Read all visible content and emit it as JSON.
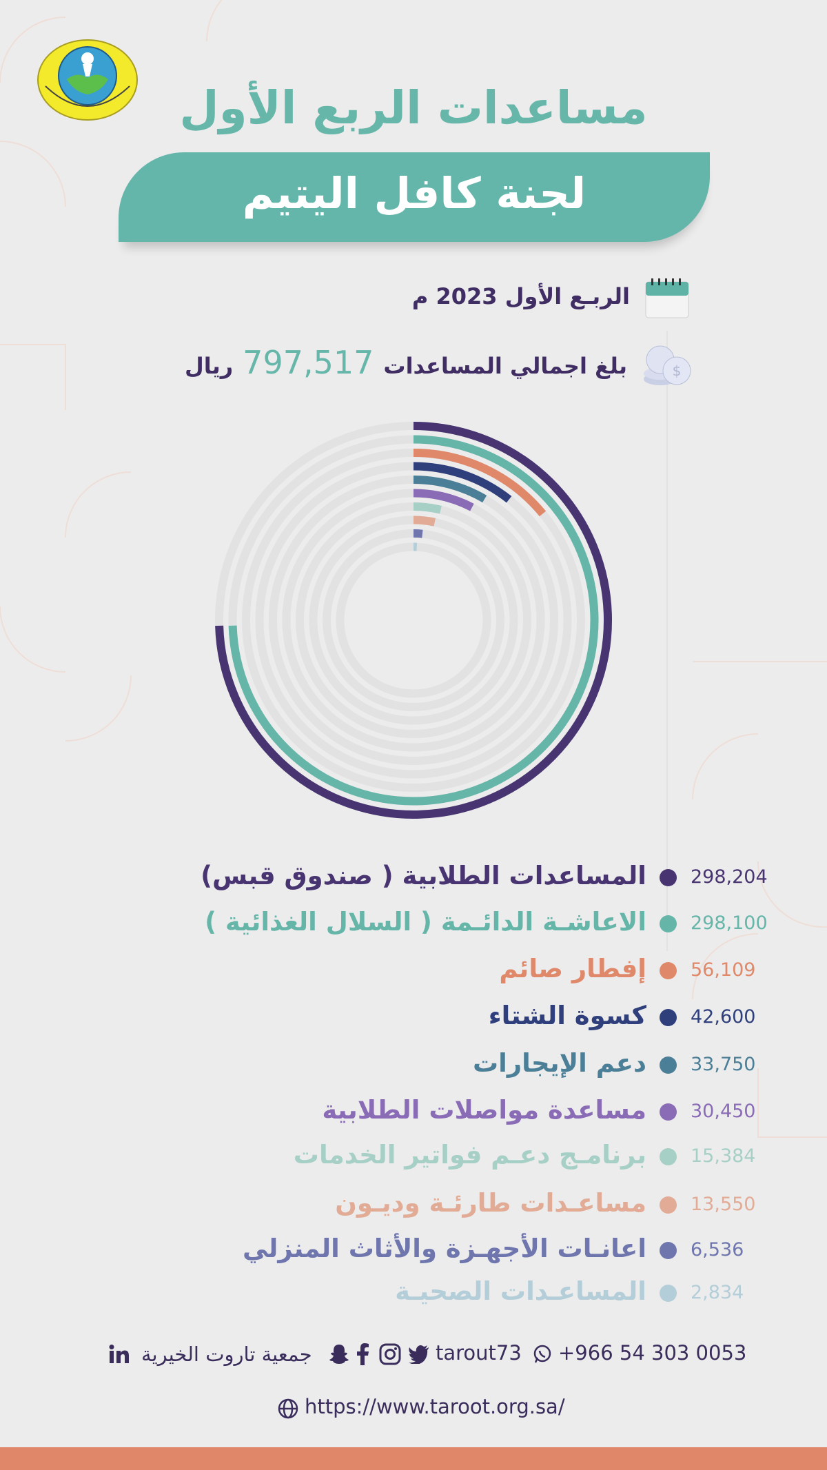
{
  "header": {
    "title": "مساعدات الربع الأول",
    "subtitle": "لجنة كافل اليتيم"
  },
  "info": {
    "period": "الربـع الأول  2023 م",
    "total_label": "بلغ اجمالي المساعدات",
    "total_amount": "797,517",
    "currency": "ريال"
  },
  "icons": {
    "calendar": "calendar-icon",
    "coins": "coins-icon",
    "whatsapp": "whatsapp-icon",
    "twitter": "twitter-icon",
    "instagram": "instagram-icon",
    "facebook": "facebook-icon",
    "snapchat": "snapchat-icon",
    "linkedin": "linkedin-icon",
    "globe": "globe-icon"
  },
  "colors": {
    "teal": "#66b6aa",
    "purple": "#473470",
    "accent_bar": "#e0876a"
  },
  "chart_data": {
    "type": "radial-bar",
    "max_value": 400000,
    "series": [
      {
        "label": "المساعدات الطلابية ( صندوق قبس)",
        "value": 298204,
        "display": "298,204",
        "color": "#473470"
      },
      {
        "label": "الاعاشـة الدائـمة ( السلال الغذائية )",
        "value": 298100,
        "display": "298,100",
        "color": "#65b5a9"
      },
      {
        "label": "إفطار صائم",
        "value": 56109,
        "display": "56,109",
        "color": "#e0886a"
      },
      {
        "label": "كسوة الشتاء",
        "value": 42600,
        "display": "42,600",
        "color": "#2f3f7c"
      },
      {
        "label": "دعم الإيجارات",
        "value": 33750,
        "display": "33,750",
        "color": "#4b7f97"
      },
      {
        "label": "مساعدة مواصلات الطلابية",
        "value": 30450,
        "display": "30,450",
        "color": "#8a6bb6"
      },
      {
        "label": "برنامـج دعـم فواتير الخدمات",
        "value": 15384,
        "display": "15,384",
        "color": "#a6cfc6"
      },
      {
        "label": "مساعـدات طارئـة وديـون",
        "value": 13550,
        "display": "13,550",
        "color": "#e2ab95"
      },
      {
        "label": "اعانـات الأجهـزة والأثاث المنزلي",
        "value": 6536,
        "display": "6,536",
        "color": "#6f76ad"
      },
      {
        "label": "المساعـدات الصحيـة",
        "value": 2834,
        "display": "2,834",
        "color": "#b3ced9"
      }
    ]
  },
  "footer": {
    "phone": "+966 54 303 0053",
    "handle": "tarout73",
    "org_name": "جمعية تاروت الخيرية",
    "website": "https://www.taroot.org.sa/"
  }
}
